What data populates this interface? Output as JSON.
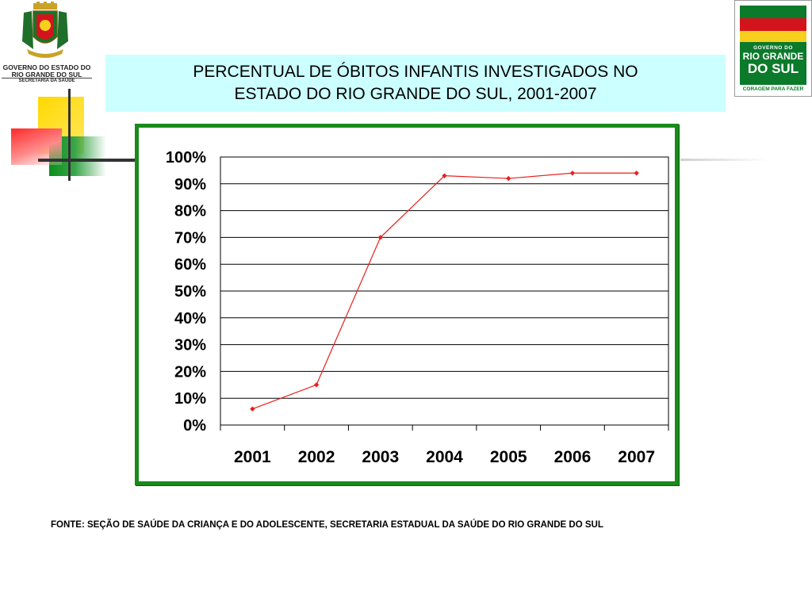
{
  "header": {
    "gov_line1": "GOVERNO DO ESTADO DO",
    "gov_line2": "RIO GRANDE DO SUL",
    "gov_line3": "SECRETARIA DA SAÚDE"
  },
  "logo": {
    "line1": "GOVERNO DO",
    "line2": "RIO GRANDE",
    "line3": "DO SUL",
    "slogan": "CORAGEM PARA FAZER"
  },
  "title": {
    "line1": "PERCENTUAL DE ÓBITOS INFANTIS INVESTIGADOS NO",
    "line2": "ESTADO DO RIO GRANDE DO SUL, 2001-2007"
  },
  "chart_data": {
    "type": "line",
    "title": "PERCENTUAL DE ÓBITOS INFANTIS INVESTIGADOS NO ESTADO DO RIO GRANDE DO SUL, 2001-2007",
    "categories": [
      "2001",
      "2002",
      "2003",
      "2004",
      "2005",
      "2006",
      "2007"
    ],
    "values": [
      6,
      15,
      70,
      93,
      92,
      94,
      94
    ],
    "y_ticks": [
      "0%",
      "10%",
      "20%",
      "30%",
      "40%",
      "50%",
      "60%",
      "70%",
      "80%",
      "90%",
      "100%"
    ],
    "ylim": [
      0,
      100
    ],
    "grid": true,
    "legend": "none",
    "line_color": "#e8201e",
    "marker_color": "#e8201e"
  },
  "source": "FONTE: SEÇÃO DE SAÚDE DA CRIANÇA E DO ADOLESCENTE, SECRETARIA ESTADUAL DA SAÚDE DO RIO GRANDE DO SUL"
}
